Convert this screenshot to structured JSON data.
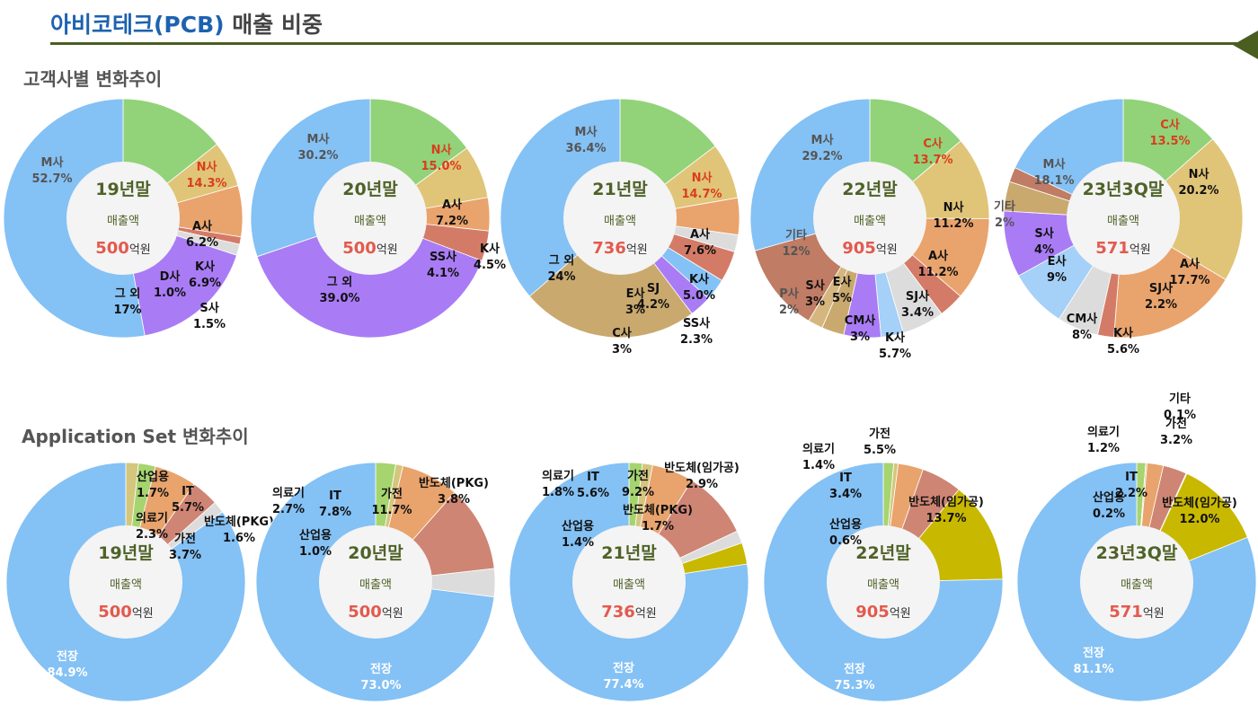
{
  "header": {
    "title_company": "아비코테크(PCB)",
    "title_rest": " 매출 비중"
  },
  "sections": {
    "customer": "고객사별 변화추이",
    "application": "Application Set 변화추이"
  },
  "colors": {
    "title_blue": "#1d62b0",
    "rule": "#4a5e22",
    "period_text": "#4f6228",
    "sales_value": "#e35a4e",
    "red_label": "#d93d1e"
  },
  "chart_data": [
    {
      "type": "donut",
      "group": "customer",
      "period": "19년말",
      "center_label": "매출액",
      "sales_value": "500",
      "sales_unit": "억원",
      "segments": [
        {
          "name": "N사",
          "value": 14.3,
          "label": "N사\n14.3%",
          "color": "#92d279",
          "label_color": "#d93d1e"
        },
        {
          "name": "A사",
          "value": 6.2,
          "label": "A사\n6.2%",
          "color": "#e0c578",
          "label_color": "#111111"
        },
        {
          "name": "K사",
          "value": 6.9,
          "label": "K사\n6.9%",
          "color": "#e9a36c",
          "label_color": "#111111"
        },
        {
          "name": "D사",
          "value": 1.0,
          "label": "D사\n1.0%",
          "color": "#d47b68",
          "label_color": "#111111"
        },
        {
          "name": "S사",
          "value": 1.5,
          "label": "S사\n1.5%",
          "color": "#dcdcdc",
          "label_color": "#111111"
        },
        {
          "name": "그 외",
          "value": 17.0,
          "label": "그 외\n17%",
          "color": "#a97cf5",
          "label_color": "#111111"
        },
        {
          "name": "M사",
          "value": 52.7,
          "label": "M사\n52.7%",
          "color": "#84c1f5",
          "label_color": "#555555"
        }
      ]
    },
    {
      "type": "donut",
      "group": "customer",
      "period": "20년말",
      "center_label": "매출액",
      "sales_value": "500",
      "sales_unit": "억원",
      "segments": [
        {
          "name": "N사",
          "value": 15.0,
          "label": "N사\n15.0%",
          "color": "#92d279",
          "label_color": "#d93d1e"
        },
        {
          "name": "A사",
          "value": 7.2,
          "label": "A사\n7.2%",
          "color": "#e0c578",
          "label_color": "#111111"
        },
        {
          "name": "K사",
          "value": 4.5,
          "label": "K사\n4.5%",
          "color": "#e9a36c",
          "label_color": "#111111"
        },
        {
          "name": "SS사",
          "value": 4.1,
          "label": "SS사\n4.1%",
          "color": "#d47b68",
          "label_color": "#111111"
        },
        {
          "name": "그 외",
          "value": 39.0,
          "label": "그 외\n39.0%",
          "color": "#a97cf5",
          "label_color": "#111111"
        },
        {
          "name": "M사",
          "value": 30.2,
          "label": "M사\n30.2%",
          "color": "#84c1f5",
          "label_color": "#555555"
        }
      ]
    },
    {
      "type": "donut",
      "group": "customer",
      "period": "21년말",
      "center_label": "매출액",
      "sales_value": "736",
      "sales_unit": "억원",
      "segments": [
        {
          "name": "N사",
          "value": 14.7,
          "label": "N사\n14.7%",
          "color": "#92d279",
          "label_color": "#d93d1e"
        },
        {
          "name": "A사",
          "value": 7.6,
          "label": "A사\n7.6%",
          "color": "#e0c578",
          "label_color": "#111111"
        },
        {
          "name": "K사",
          "value": 5.0,
          "label": "K사\n5.0%",
          "color": "#e9a36c",
          "label_color": "#111111"
        },
        {
          "name": "SS사",
          "value": 2.3,
          "label": "SS사\n2.3%",
          "color": "#dcdcdc",
          "label_color": "#111111"
        },
        {
          "name": "SJ",
          "value": 4.2,
          "label": "SJ\n4.2%",
          "color": "#d47b68",
          "label_color": "#111111"
        },
        {
          "name": "E사",
          "value": 3.0,
          "label": "E사\n3%",
          "color": "#84c1f5",
          "label_color": "#111111"
        },
        {
          "name": "C사",
          "value": 3.0,
          "label": "C사\n3%",
          "color": "#a97cf5",
          "label_color": "#111111"
        },
        {
          "name": "그 외",
          "value": 24.0,
          "label": "그 외\n24%",
          "color": "#c9a96e",
          "label_color": "#111111"
        },
        {
          "name": "M사",
          "value": 36.4,
          "label": "M사\n36.4%",
          "color": "#84c1f5",
          "label_color": "#555555"
        }
      ]
    },
    {
      "type": "donut",
      "group": "customer",
      "period": "22년말",
      "center_label": "매출액",
      "sales_value": "905",
      "sales_unit": "억원",
      "segments": [
        {
          "name": "C사",
          "value": 13.7,
          "label": "C사\n13.7%",
          "color": "#92d279",
          "label_color": "#d93d1e"
        },
        {
          "name": "N사",
          "value": 11.2,
          "label": "N사\n11.2%",
          "color": "#e0c578",
          "label_color": "#111111"
        },
        {
          "name": "A사",
          "value": 11.2,
          "label": "A사\n11.2%",
          "color": "#e9a36c",
          "label_color": "#111111"
        },
        {
          "name": "SJ사",
          "value": 3.4,
          "label": "SJ사\n3.4%",
          "color": "#d47b68",
          "label_color": "#111111"
        },
        {
          "name": "K사",
          "value": 5.7,
          "label": "K사\n5.7%",
          "color": "#dcdcdc",
          "label_color": "#111111"
        },
        {
          "name": "CM사",
          "value": 3.0,
          "label": "CM사\n3%",
          "color": "#a5d0f8",
          "label_color": "#111111"
        },
        {
          "name": "E사",
          "value": 5.0,
          "label": "E사\n5%",
          "color": "#a97cf5",
          "label_color": "#111111"
        },
        {
          "name": "S사",
          "value": 3.0,
          "label": "S사\n3%",
          "color": "#c9a96e",
          "label_color": "#111111"
        },
        {
          "name": "P사",
          "value": 2.0,
          "label": "P사\n2%",
          "color": "#d5b67e",
          "label_color": "#555555"
        },
        {
          "name": "기타",
          "value": 12.0,
          "label": "기타\n12%",
          "color": "#c07c64",
          "label_color": "#555555"
        },
        {
          "name": "M사",
          "value": 29.2,
          "label": "M사\n29.2%",
          "color": "#84c1f5",
          "label_color": "#555555"
        }
      ]
    },
    {
      "type": "donut",
      "group": "customer",
      "period": "23년3Q말",
      "center_label": "매출액",
      "sales_value": "571",
      "sales_unit": "억원",
      "segments": [
        {
          "name": "C사",
          "value": 13.5,
          "label": "C사\n13.5%",
          "color": "#92d279",
          "label_color": "#d93d1e"
        },
        {
          "name": "N사",
          "value": 20.2,
          "label": "N사\n20.2%",
          "color": "#e0c578",
          "label_color": "#111111"
        },
        {
          "name": "A사",
          "value": 17.7,
          "label": "A사\n17.7%",
          "color": "#e9a36c",
          "label_color": "#111111"
        },
        {
          "name": "SJ사",
          "value": 2.2,
          "label": "SJ사\n2.2%",
          "color": "#d47b68",
          "label_color": "#111111"
        },
        {
          "name": "K사",
          "value": 5.6,
          "label": "K사\n5.6%",
          "color": "#dcdcdc",
          "label_color": "#111111"
        },
        {
          "name": "CM사",
          "value": 8.0,
          "label": "CM사\n8%",
          "color": "#a5d0f8",
          "label_color": "#111111"
        },
        {
          "name": "E사",
          "value": 9.0,
          "label": "E사\n9%",
          "color": "#a97cf5",
          "label_color": "#111111"
        },
        {
          "name": "S사",
          "value": 4.0,
          "label": "S사\n4%",
          "color": "#c9a96e",
          "label_color": "#111111"
        },
        {
          "name": "기타",
          "value": 2.0,
          "label": "기타\n2%",
          "color": "#c07c64",
          "label_color": "#555555"
        },
        {
          "name": "M사",
          "value": 18.1,
          "label": "M사\n18.1%",
          "color": "#84c1f5",
          "label_color": "#555555"
        }
      ]
    },
    {
      "type": "donut",
      "group": "application",
      "period": "19년말",
      "center_label": "매출액",
      "sales_value": "500",
      "sales_unit": "억원",
      "segments": [
        {
          "name": "산업용",
          "value": 1.7,
          "label": "산업용\n1.7%",
          "color": "#d5c67e",
          "label_color": "#111111"
        },
        {
          "name": "의료기",
          "value": 2.3,
          "label": "의료기\n2.3%",
          "color": "#a6d46f",
          "label_color": "#111111"
        },
        {
          "name": "IT",
          "value": 5.7,
          "label": "IT\n5.7%",
          "color": "#e9a36c",
          "label_color": "#111111"
        },
        {
          "name": "가전",
          "value": 3.7,
          "label": "가전\n3.7%",
          "color": "#cf8574",
          "label_color": "#111111"
        },
        {
          "name": "반도체(PKG)",
          "value": 1.6,
          "label": "반도체(PKG)\n1.6%",
          "color": "#dcdcdc",
          "label_color": "#111111"
        },
        {
          "name": "전장",
          "value": 84.9,
          "label": "전장\n84.9%",
          "color": "#84c1f5",
          "label_color": "#ffffff"
        }
      ]
    },
    {
      "type": "donut",
      "group": "application",
      "period": "20년말",
      "center_label": "매출액",
      "sales_value": "500",
      "sales_unit": "억원",
      "segments": [
        {
          "name": "의료기",
          "value": 2.7,
          "label": "의료기\n2.7%",
          "color": "#a6d46f",
          "label_color": "#111111"
        },
        {
          "name": "산업용",
          "value": 1.0,
          "label": "산업용\n1.0%",
          "color": "#d5c67e",
          "label_color": "#111111"
        },
        {
          "name": "IT",
          "value": 7.8,
          "label": "IT\n7.8%",
          "color": "#e9a36c",
          "label_color": "#111111"
        },
        {
          "name": "가전",
          "value": 11.7,
          "label": "가전\n11.7%",
          "color": "#cf8574",
          "label_color": "#111111"
        },
        {
          "name": "반도체(PKG)",
          "value": 3.8,
          "label": "반도체(PKG)\n3.8%",
          "color": "#dcdcdc",
          "label_color": "#111111"
        },
        {
          "name": "전장",
          "value": 73.0,
          "label": "전장\n73.0%",
          "color": "#84c1f5",
          "label_color": "#ffffff"
        }
      ]
    },
    {
      "type": "donut",
      "group": "application",
      "period": "21년말",
      "center_label": "매출액",
      "sales_value": "736",
      "sales_unit": "억원",
      "segments": [
        {
          "name": "의료기",
          "value": 1.8,
          "label": "의료기\n1.8%",
          "color": "#a6d46f",
          "label_color": "#111111"
        },
        {
          "name": "산업용",
          "value": 1.4,
          "label": "산업용\n1.4%",
          "color": "#d5c67e",
          "label_color": "#111111"
        },
        {
          "name": "IT",
          "value": 5.6,
          "label": "IT\n5.6%",
          "color": "#e9a36c",
          "label_color": "#111111"
        },
        {
          "name": "가전",
          "value": 9.2,
          "label": "가전\n9.2%",
          "color": "#cf8574",
          "label_color": "#111111"
        },
        {
          "name": "반도체(PKG)",
          "value": 1.7,
          "label": "반도체(PKG)\n1.7%",
          "color": "#dcdcdc",
          "label_color": "#111111"
        },
        {
          "name": "반도체(임가공)",
          "value": 2.9,
          "label": "반도체(임가공)\n2.9%",
          "color": "#c9b800",
          "label_color": "#111111"
        },
        {
          "name": "전장",
          "value": 77.4,
          "label": "전장\n77.4%",
          "color": "#84c1f5",
          "label_color": "#ffffff"
        }
      ]
    },
    {
      "type": "donut",
      "group": "application",
      "period": "22년말",
      "center_label": "매출액",
      "sales_value": "905",
      "sales_unit": "억원",
      "segments": [
        {
          "name": "의료기",
          "value": 1.4,
          "label": "의료기\n1.4%",
          "color": "#a6d46f",
          "label_color": "#111111"
        },
        {
          "name": "산업용",
          "value": 0.6,
          "label": "산업용\n0.6%",
          "color": "#d5c67e",
          "label_color": "#111111"
        },
        {
          "name": "IT",
          "value": 3.4,
          "label": "IT\n3.4%",
          "color": "#e9a36c",
          "label_color": "#111111"
        },
        {
          "name": "가전",
          "value": 5.5,
          "label": "가전\n5.5%",
          "color": "#cf8574",
          "label_color": "#111111"
        },
        {
          "name": "반도체(임가공)",
          "value": 13.7,
          "label": "반도체(임가공)\n13.7%",
          "color": "#c9b800",
          "label_color": "#111111"
        },
        {
          "name": "전장",
          "value": 75.3,
          "label": "전장\n75.3%",
          "color": "#84c1f5",
          "label_color": "#ffffff"
        }
      ]
    },
    {
      "type": "donut",
      "group": "application",
      "period": "23년3Q말",
      "center_label": "매출액",
      "sales_value": "571",
      "sales_unit": "억원",
      "segments": [
        {
          "name": "의료기",
          "value": 1.2,
          "label": "의료기\n1.2%",
          "color": "#a6d46f",
          "label_color": "#111111"
        },
        {
          "name": "산업용",
          "value": 0.2,
          "label": "산업용\n0.2%",
          "color": "#d5c67e",
          "label_color": "#111111"
        },
        {
          "name": "IT",
          "value": 2.2,
          "label": "IT\n2.2%",
          "color": "#e9a36c",
          "label_color": "#111111"
        },
        {
          "name": "가전",
          "value": 3.2,
          "label": "가전\n3.2%",
          "color": "#cf8574",
          "label_color": "#111111"
        },
        {
          "name": "기타",
          "value": 0.1,
          "label": "기타\n0.1%",
          "color": "#dcdcdc",
          "label_color": "#111111"
        },
        {
          "name": "반도체(임가공)",
          "value": 12.0,
          "label": "반도체(임가공)\n12.0%",
          "color": "#c9b800",
          "label_color": "#111111"
        },
        {
          "name": "전장",
          "value": 81.1,
          "label": "전장\n81.1%",
          "color": "#84c1f5",
          "label_color": "#ffffff"
        }
      ]
    }
  ]
}
